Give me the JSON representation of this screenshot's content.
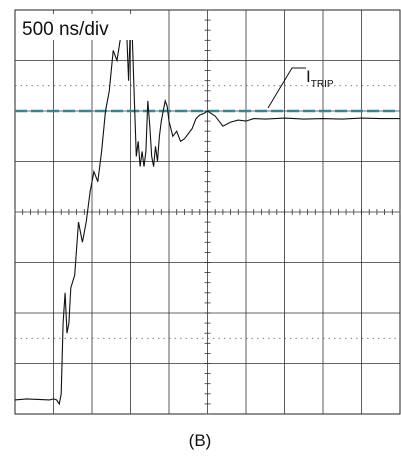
{
  "chart_data": {
    "type": "line",
    "timebase_label": "500 ns/div",
    "annotation": {
      "label": "I",
      "subscript": "TRIP",
      "level_div": 2.0
    },
    "caption": "(B)",
    "grid": {
      "h_divisions": 10,
      "v_divisions": 8,
      "minor_ticks_per_div": 5,
      "grid": true
    },
    "threshold_line": {
      "y": 2.0,
      "style": "dashed",
      "color": "#2a8b96"
    },
    "trace_color": "#111111",
    "series": [
      {
        "x": [
          0,
          0.3,
          0.6,
          0.9,
          1.0,
          1.08,
          1.15,
          1.2,
          1.25,
          1.3,
          1.35,
          1.4,
          1.45,
          1.55,
          1.65,
          1.75,
          1.85,
          1.95,
          2.05,
          2.15,
          2.25,
          2.35,
          2.45,
          2.55,
          2.65,
          2.75,
          2.85,
          2.9,
          2.95,
          3.0,
          3.05,
          3.1,
          3.15,
          3.2,
          3.25,
          3.3,
          3.35,
          3.4,
          3.45,
          3.5,
          3.55,
          3.6,
          3.65,
          3.7,
          3.75,
          3.8,
          3.85,
          3.9,
          3.95,
          4.0,
          4.1,
          4.2,
          4.3,
          4.4,
          4.5,
          4.6,
          4.7,
          4.8,
          4.9,
          5.0,
          5.2,
          5.4,
          5.6,
          5.8,
          6.0,
          6.2,
          6.5,
          7.0,
          7.5,
          8.0,
          8.5,
          9.0,
          9.5,
          10.0
        ],
        "y": [
          -3.72,
          -3.7,
          -3.71,
          -3.72,
          -3.7,
          -3.72,
          -3.8,
          -3.6,
          -2.2,
          -1.6,
          -2.4,
          -2.2,
          -1.5,
          -1.25,
          -0.2,
          -0.6,
          -0.2,
          0.4,
          0.8,
          0.6,
          1.2,
          2.0,
          2.4,
          3.2,
          3.0,
          3.5,
          3.8,
          3.6,
          2.6,
          3.75,
          3.4,
          2.2,
          1.1,
          1.4,
          0.9,
          1.2,
          0.9,
          1.2,
          2.2,
          1.7,
          1.1,
          0.9,
          1.3,
          1.0,
          1.5,
          1.8,
          2.0,
          2.2,
          2.1,
          1.8,
          1.5,
          1.6,
          1.4,
          1.45,
          1.55,
          1.65,
          1.85,
          1.92,
          1.95,
          2.0,
          1.9,
          1.7,
          1.78,
          1.82,
          1.8,
          1.85,
          1.84,
          1.86,
          1.84,
          1.85,
          1.84,
          1.86,
          1.85,
          1.85
        ]
      }
    ]
  }
}
